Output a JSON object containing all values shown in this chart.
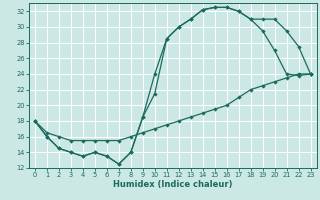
{
  "xlabel": "Humidex (Indice chaleur)",
  "bg_color": "#cce8e4",
  "grid_color": "#ffffff",
  "line_color": "#1a6b5e",
  "xlim": [
    -0.5,
    23.5
  ],
  "ylim": [
    12,
    33
  ],
  "xticks": [
    0,
    1,
    2,
    3,
    4,
    5,
    6,
    7,
    8,
    9,
    10,
    11,
    12,
    13,
    14,
    15,
    16,
    17,
    18,
    19,
    20,
    21,
    22,
    23
  ],
  "yticks": [
    12,
    14,
    16,
    18,
    20,
    22,
    24,
    26,
    28,
    30,
    32
  ],
  "line1_x": [
    0,
    1,
    2,
    3,
    4,
    5,
    6,
    7,
    8,
    9,
    10,
    11,
    12,
    13,
    14,
    15,
    16,
    17,
    18,
    19,
    20,
    21,
    22,
    23
  ],
  "line1_y": [
    18,
    16,
    14.5,
    14,
    13.5,
    14,
    13.5,
    12.5,
    14,
    18.5,
    24,
    28.5,
    30,
    31,
    32.2,
    32.5,
    32.5,
    32,
    31,
    29.5,
    27,
    24,
    23.8,
    24
  ],
  "line2_x": [
    0,
    1,
    2,
    3,
    4,
    5,
    6,
    7,
    8,
    9,
    10,
    11,
    12,
    13,
    14,
    15,
    16,
    17,
    18,
    19,
    20,
    21,
    22,
    23
  ],
  "line2_y": [
    18,
    16,
    14.5,
    14,
    13.5,
    14,
    13.5,
    12.5,
    14,
    18.5,
    21.5,
    28.5,
    30,
    31,
    32.2,
    32.5,
    32.5,
    32,
    31,
    31,
    31,
    29.5,
    27.5,
    24
  ],
  "line3_x": [
    0,
    1,
    2,
    3,
    4,
    5,
    6,
    7,
    8,
    9,
    10,
    11,
    12,
    13,
    14,
    15,
    16,
    17,
    18,
    19,
    20,
    21,
    22,
    23
  ],
  "line3_y": [
    18,
    16.5,
    16,
    15.5,
    15.5,
    15.5,
    15.5,
    15.5,
    16,
    16.5,
    17,
    17.5,
    18,
    18.5,
    19,
    19.5,
    20,
    21,
    22,
    22.5,
    23,
    23.5,
    24,
    24
  ]
}
